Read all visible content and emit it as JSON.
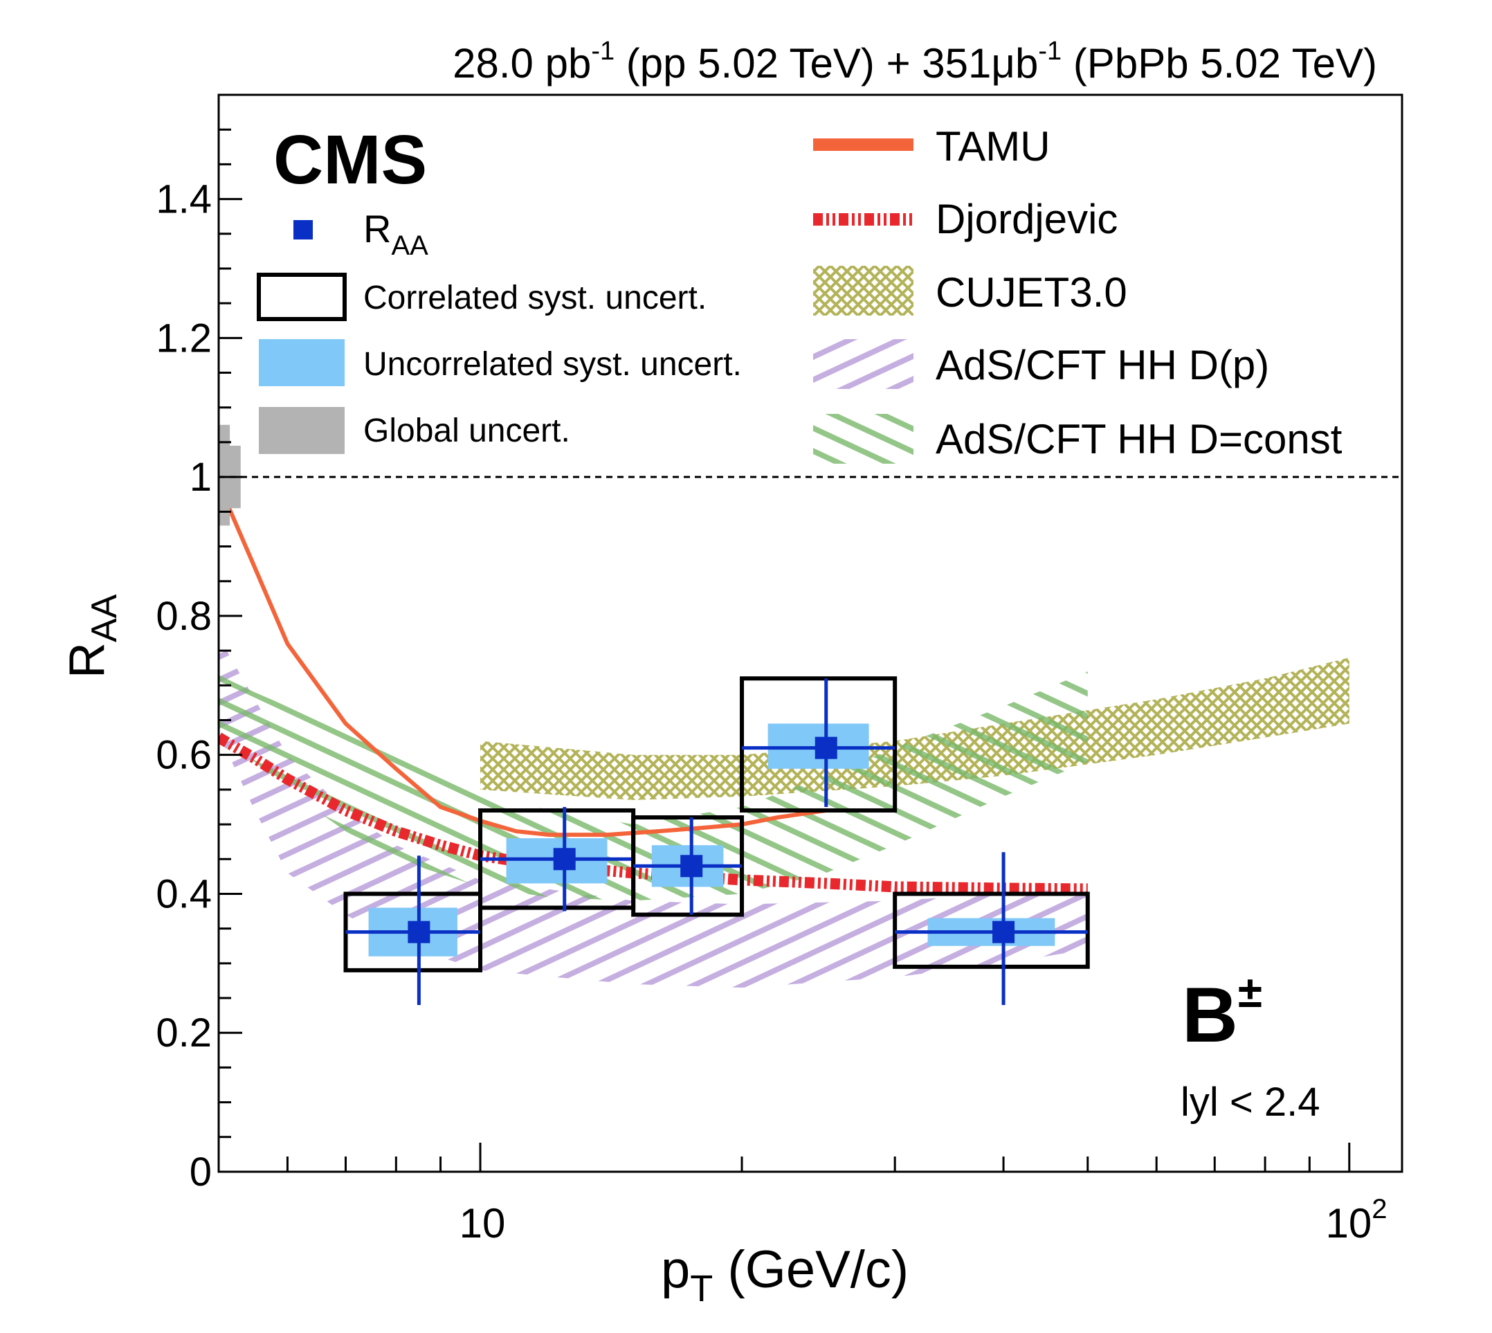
{
  "header": {
    "lumi_pp": "28.0 pb",
    "lumi_pp_exp": "-1",
    "lumi_pp_tail": " (pp 5.02 TeV) + 351",
    "mu": "μ",
    "lumi_pbpb_unit": "b",
    "lumi_pbpb_exp": "-1",
    "lumi_pbpb_tail": " (PbPb 5.02 TeV)"
  },
  "labels": {
    "cms": "CMS",
    "particle": "B",
    "particle_charge": "±",
    "rapidity_cut": "lyl < 2.4"
  },
  "legend_left": {
    "raa_main": "R",
    "raa_sub": "AA",
    "corr": "Correlated syst. uncert.",
    "uncorr": "Uncorrelated syst. uncert.",
    "global": "Global uncert."
  },
  "legend_right": {
    "tamu": "TAMU",
    "djordjevic": "Djordjevic",
    "cujet": "CUJET3.0",
    "ads_dp": "AdS/CFT HH D(p)",
    "ads_const": "AdS/CFT HH D=const"
  },
  "colors": {
    "data": "#0a2fc4",
    "uncorr": "#80c8f8",
    "global": "#b3b3b3",
    "tamu": "#f4643a",
    "djordjevic": "#e8282c",
    "cujet": "#a6a63c",
    "ads_dp": "#b79ad8",
    "ads_const": "#79b86a"
  },
  "chart_data": {
    "type": "scatter",
    "xscale": "log",
    "xlim": [
      5,
      115
    ],
    "ylim": [
      0,
      1.55
    ],
    "xlabel_main": "p",
    "xlabel_sub": "T",
    "xlabel_tail": " (GeV/c)",
    "ylabel_main": "R",
    "ylabel_sub": "AA",
    "x_tick_10": "10",
    "x_tick_100_base": "10",
    "x_tick_100_exp": "2",
    "y_ticks": [
      {
        "value": 0,
        "label": "0"
      },
      {
        "value": 0.2,
        "label": "0.2"
      },
      {
        "value": 0.4,
        "label": "0.4"
      },
      {
        "value": 0.6,
        "label": "0.6"
      },
      {
        "value": 0.8,
        "label": "0.8"
      },
      {
        "value": 1.0,
        "label": "1"
      },
      {
        "value": 1.2,
        "label": "1.2"
      },
      {
        "value": 1.4,
        "label": "1.4"
      }
    ],
    "reference_line": 1.0,
    "global_uncert": [
      {
        "y_low": 0.955,
        "y_high": 1.045,
        "x_low": 5,
        "x_high": 5.3
      },
      {
        "y_low": 0.93,
        "y_high": 1.075,
        "x_low": 5,
        "x_high": 5.15
      }
    ],
    "points": [
      {
        "x": 8.5,
        "x_low": 7,
        "x_high": 10,
        "y": 0.345,
        "stat_low": 0.24,
        "stat_high": 0.455,
        "corr_low": 0.29,
        "corr_high": 0.4,
        "uncorr_low": 0.31,
        "uncorr_high": 0.38
      },
      {
        "x": 12.5,
        "x_low": 10,
        "x_high": 15,
        "y": 0.45,
        "stat_low": 0.375,
        "stat_high": 0.525,
        "corr_low": 0.38,
        "corr_high": 0.52,
        "uncorr_low": 0.415,
        "uncorr_high": 0.48
      },
      {
        "x": 17.5,
        "x_low": 15,
        "x_high": 20,
        "y": 0.44,
        "stat_low": 0.37,
        "stat_high": 0.51,
        "corr_low": 0.37,
        "corr_high": 0.51,
        "uncorr_low": 0.41,
        "uncorr_high": 0.47
      },
      {
        "x": 25,
        "x_low": 20,
        "x_high": 30,
        "y": 0.61,
        "stat_low": 0.525,
        "stat_high": 0.71,
        "corr_low": 0.52,
        "corr_high": 0.71,
        "uncorr_low": 0.58,
        "uncorr_high": 0.645
      },
      {
        "x": 40,
        "x_low": 30,
        "x_high": 50,
        "y": 0.345,
        "stat_low": 0.24,
        "stat_high": 0.46,
        "corr_low": 0.295,
        "corr_high": 0.4,
        "uncorr_low": 0.325,
        "uncorr_high": 0.365
      }
    ],
    "models": {
      "tamu": {
        "x": [
          5,
          5.5,
          6,
          7,
          8,
          9,
          10,
          11,
          12,
          14,
          16,
          18,
          20,
          22,
          25,
          28
        ],
        "y": [
          0.99,
          0.87,
          0.76,
          0.645,
          0.58,
          0.525,
          0.505,
          0.49,
          0.485,
          0.485,
          0.49,
          0.495,
          0.5,
          0.51,
          0.52,
          0.52
        ]
      },
      "djordjevic": {
        "x": [
          5,
          5.5,
          6,
          7,
          8,
          9,
          10,
          12,
          15,
          20,
          25,
          30,
          40,
          50
        ],
        "y": [
          0.625,
          0.595,
          0.565,
          0.52,
          0.49,
          0.47,
          0.455,
          0.44,
          0.43,
          0.42,
          0.415,
          0.41,
          0.408,
          0.407
        ]
      },
      "cujet": {
        "x": [
          10,
          15,
          20,
          30,
          40,
          60,
          80,
          100
        ],
        "y_low": [
          0.55,
          0.535,
          0.54,
          0.555,
          0.57,
          0.6,
          0.625,
          0.645
        ],
        "y_high": [
          0.62,
          0.6,
          0.6,
          0.62,
          0.645,
          0.68,
          0.71,
          0.74
        ]
      },
      "ads_dp": {
        "x": [
          5,
          5.5,
          6,
          7,
          8,
          10,
          15,
          20,
          30,
          40,
          50
        ],
        "y_low": [
          0.63,
          0.52,
          0.43,
          0.37,
          0.33,
          0.29,
          0.27,
          0.265,
          0.28,
          0.3,
          0.32
        ],
        "y_high": [
          0.77,
          0.68,
          0.6,
          0.52,
          0.47,
          0.42,
          0.39,
          0.385,
          0.39,
          0.4,
          0.41
        ]
      },
      "ads_const": {
        "x": [
          5,
          5.5,
          6,
          7,
          8,
          10,
          12,
          15,
          20,
          25,
          30,
          40,
          50
        ],
        "y_low": [
          0.63,
          0.59,
          0.55,
          0.49,
          0.45,
          0.41,
          0.395,
          0.39,
          0.4,
          0.43,
          0.47,
          0.54,
          0.59
        ],
        "y_high": [
          0.715,
          0.69,
          0.67,
          0.635,
          0.6,
          0.55,
          0.52,
          0.5,
          0.525,
          0.57,
          0.61,
          0.67,
          0.72
        ]
      }
    }
  }
}
